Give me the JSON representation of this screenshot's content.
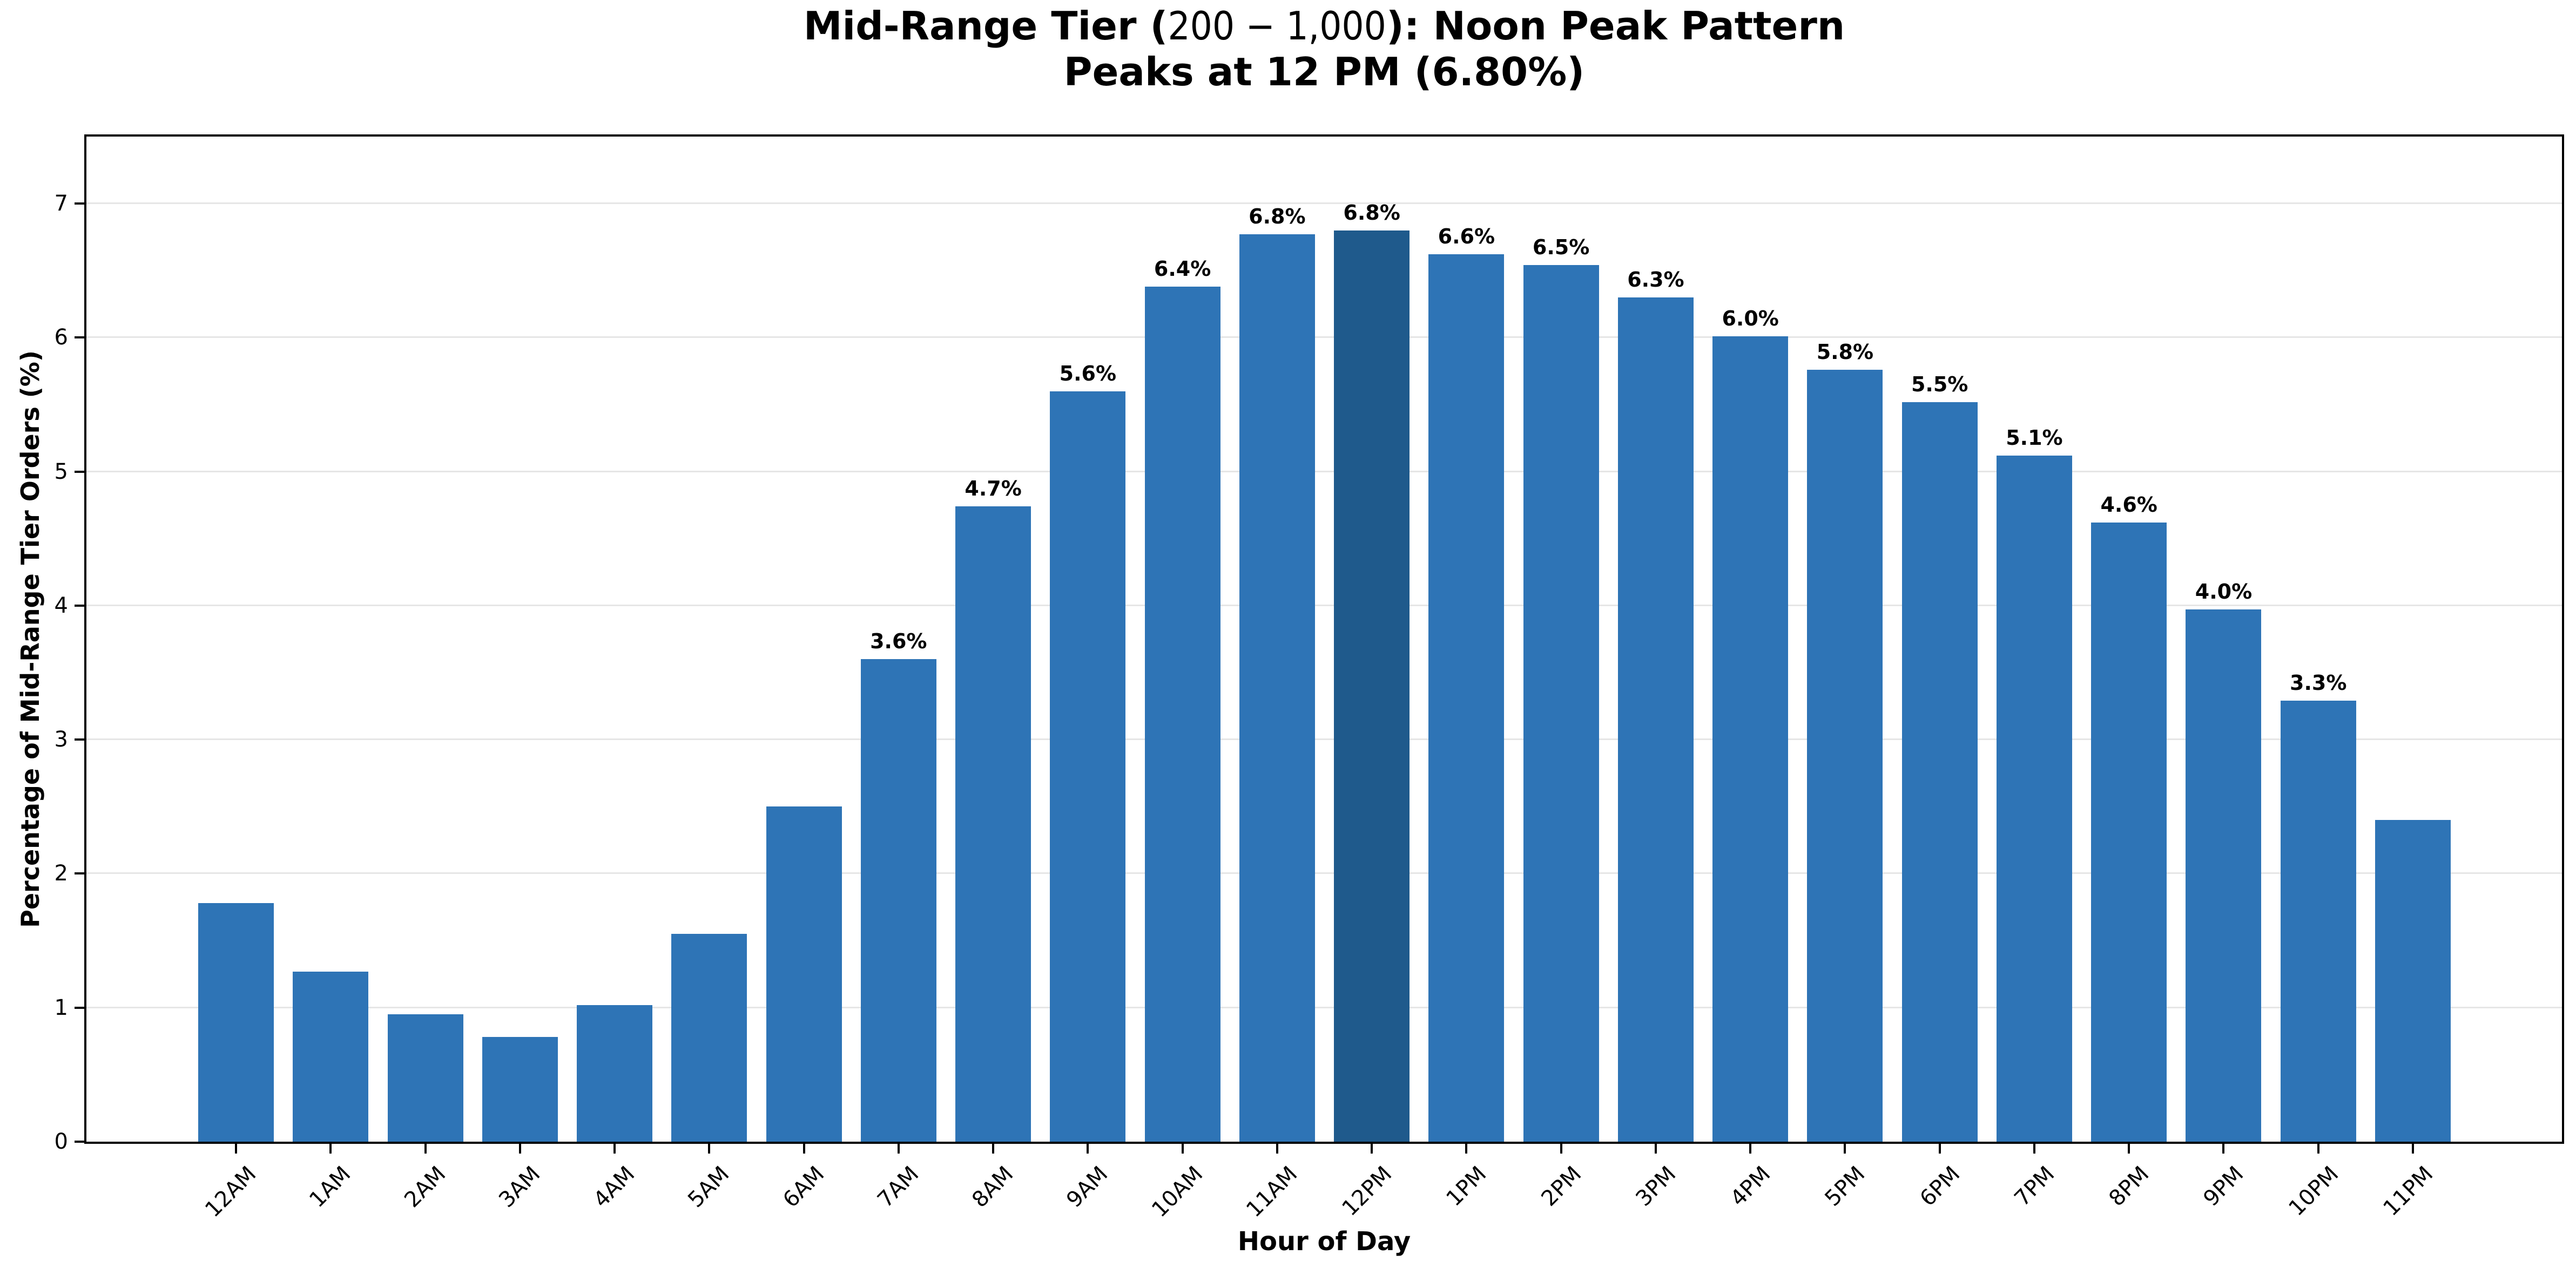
{
  "title": {
    "line1_prefix": "Mid-Range Tier (",
    "line1_math": "200 − 1,000",
    "line1_suffix": "): Noon Peak Pattern",
    "line2": "Peaks at 12 PM (6.80%)"
  },
  "axes": {
    "x_label": "Hour of Day",
    "y_label": "Percentage of Mid-Range Tier Orders (%)",
    "y_ticks": [
      0,
      1,
      2,
      3,
      4,
      5,
      6,
      7
    ],
    "y_max": 7.5
  },
  "chart_data": {
    "type": "bar",
    "title": "Mid-Range Tier (200 − 1,000): Noon Peak Pattern — Peaks at 12 PM (6.80%)",
    "xlabel": "Hour of Day",
    "ylabel": "Percentage of Mid-Range Tier Orders (%)",
    "ylim": [
      0,
      7.5
    ],
    "grid": "horizontal",
    "categories": [
      "12AM",
      "1AM",
      "2AM",
      "3AM",
      "4AM",
      "5AM",
      "6AM",
      "7AM",
      "8AM",
      "9AM",
      "10AM",
      "11AM",
      "12PM",
      "1PM",
      "2PM",
      "3PM",
      "4PM",
      "5PM",
      "6PM",
      "7PM",
      "8PM",
      "9PM",
      "10PM",
      "11PM"
    ],
    "values": [
      1.78,
      1.27,
      0.95,
      0.78,
      1.02,
      1.55,
      2.5,
      3.6,
      4.74,
      5.6,
      6.38,
      6.77,
      6.8,
      6.62,
      6.54,
      6.3,
      6.01,
      5.76,
      5.52,
      5.12,
      4.62,
      3.97,
      3.29,
      2.4
    ],
    "bar_labels": [
      null,
      null,
      null,
      null,
      null,
      null,
      null,
      "3.6%",
      "4.7%",
      "5.6%",
      "6.4%",
      "6.8%",
      "6.8%",
      "6.6%",
      "6.5%",
      "6.3%",
      "6.0%",
      "5.8%",
      "5.5%",
      "5.1%",
      "4.6%",
      "4.0%",
      "3.3%",
      null
    ],
    "highlight_index": 12,
    "colors": {
      "bar": "#2e74b6",
      "highlight_bar": "#1f5a8c",
      "gridline": "#e6e6e6",
      "axis": "#000000",
      "text": "#000000"
    }
  }
}
